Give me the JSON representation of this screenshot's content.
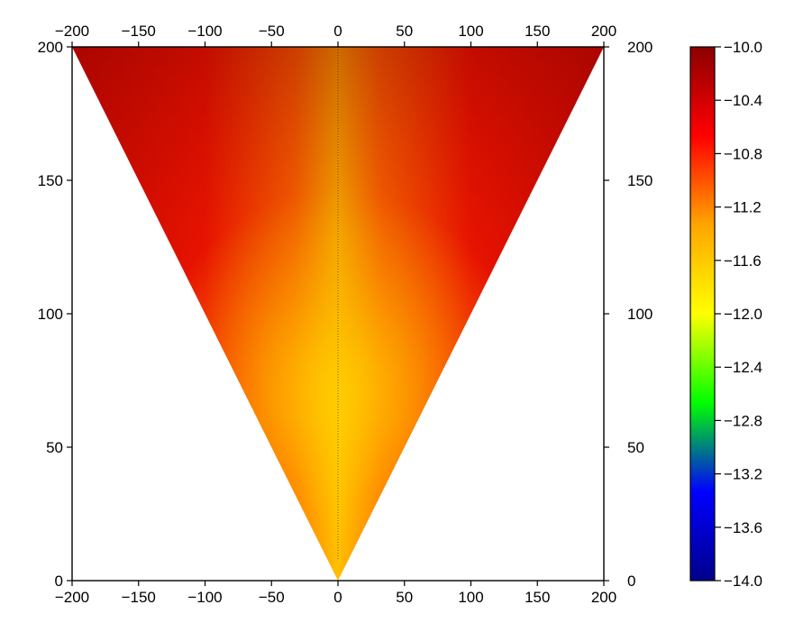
{
  "chart_data": {
    "type": "heatmap",
    "title": "",
    "xlabel": "",
    "ylabel": "",
    "xlim": [
      -200,
      200
    ],
    "ylim": [
      0,
      200
    ],
    "x_ticks": [
      -200,
      -150,
      -100,
      -50,
      0,
      50,
      100,
      150,
      200
    ],
    "y_ticks": [
      0,
      50,
      100,
      150,
      200
    ],
    "x_tick_labels": [
      "−200",
      "−150",
      "−100",
      "−50",
      "0",
      "50",
      "100",
      "150",
      "200"
    ],
    "y_tick_labels": [
      "0",
      "50",
      "100",
      "150",
      "200"
    ],
    "region": {
      "shape": "triangle",
      "vertices": [
        [
          -200,
          200
        ],
        [
          200,
          200
        ],
        [
          0,
          0
        ]
      ]
    },
    "value_field": {
      "description": "color value increases with distance from the x=0 centerline; minimum about -11.9 near center at y~60-80, about -10.0 at the top corners",
      "center_min": -11.9,
      "edge_max": -10.0,
      "samples": [
        {
          "x": 0,
          "y": 70,
          "value": -11.9
        },
        {
          "x": 0,
          "y": 150,
          "value": -11.4
        },
        {
          "x": 0,
          "y": 200,
          "value": -11.0
        },
        {
          "x": -100,
          "y": 150,
          "value": -10.7
        },
        {
          "x": 100,
          "y": 150,
          "value": -10.7
        },
        {
          "x": -190,
          "y": 195,
          "value": -10.0
        },
        {
          "x": 190,
          "y": 195,
          "value": -10.0
        }
      ]
    },
    "colorbar": {
      "range": [
        -14.0,
        -10.0
      ],
      "ticks": [
        -14.0,
        -13.6,
        -13.2,
        -12.8,
        -12.4,
        -12.0,
        -11.6,
        -11.2,
        -10.8,
        -10.4,
        -10.0
      ],
      "tick_labels": [
        "−14.0",
        "−13.6",
        "−13.2",
        "−12.8",
        "−12.4",
        "−12.0",
        "−11.6",
        "−11.2",
        "−10.8",
        "−10.4",
        "−10.0"
      ],
      "colors": [
        "#00008b",
        "#0000ff",
        "#00ff00",
        "#ffff00",
        "#ffa500",
        "#ff0000",
        "#8b0000"
      ]
    }
  }
}
